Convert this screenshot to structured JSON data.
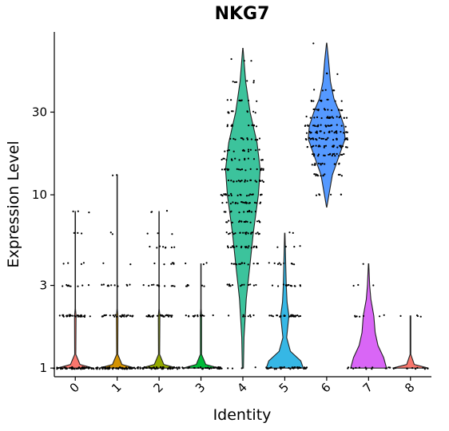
{
  "chart_data": {
    "type": "violin",
    "title": "NKG7",
    "xlabel": "Identity",
    "ylabel": "Expression Level",
    "y_scale": "log",
    "y_ticks": [
      1,
      3,
      10,
      30
    ],
    "ylim": [
      0.95,
      80
    ],
    "categories": [
      "0",
      "1",
      "2",
      "3",
      "4",
      "5",
      "6",
      "7",
      "8"
    ],
    "colors": [
      "#F8766D",
      "#D39200",
      "#93AA00",
      "#00BA38",
      "#3CC39C",
      "#36B7E5",
      "#5599FF",
      "#D966F6",
      "#F8766D"
    ],
    "series": [
      {
        "name": "0",
        "min": 1,
        "max": 8,
        "shape": [
          [
            1,
            0.95
          ],
          [
            1.05,
            0.25
          ],
          [
            1.2,
            0.03
          ],
          [
            2,
            0.04
          ],
          [
            2.2,
            0.01
          ],
          [
            8,
            0.01
          ]
        ],
        "levels": [
          [
            1,
            55
          ],
          [
            2,
            30
          ],
          [
            3,
            9
          ],
          [
            4,
            4
          ],
          [
            6,
            3
          ],
          [
            8,
            3
          ]
        ],
        "fill": false
      },
      {
        "name": "1",
        "min": 1,
        "max": 13,
        "shape": [
          [
            1,
            0.95
          ],
          [
            1.05,
            0.25
          ],
          [
            1.2,
            0.03
          ],
          [
            2,
            0.04
          ],
          [
            2.2,
            0.01
          ],
          [
            13,
            0.01
          ]
        ],
        "levels": [
          [
            1,
            55
          ],
          [
            2,
            30
          ],
          [
            3,
            12
          ],
          [
            4,
            2
          ],
          [
            6,
            2
          ],
          [
            13,
            2
          ]
        ],
        "fill": false
      },
      {
        "name": "2",
        "min": 1,
        "max": 8,
        "shape": [
          [
            1,
            0.95
          ],
          [
            1.05,
            0.25
          ],
          [
            1.2,
            0.03
          ],
          [
            2,
            0.04
          ],
          [
            2.2,
            0.01
          ],
          [
            8,
            0.01
          ]
        ],
        "levels": [
          [
            1,
            50
          ],
          [
            2,
            28
          ],
          [
            3,
            12
          ],
          [
            4,
            6
          ],
          [
            5,
            8
          ],
          [
            6,
            3
          ],
          [
            8,
            3
          ]
        ],
        "fill": false
      },
      {
        "name": "3",
        "min": 1,
        "max": 4,
        "shape": [
          [
            1,
            0.95
          ],
          [
            1.05,
            0.25
          ],
          [
            1.2,
            0.03
          ],
          [
            2,
            0.03
          ],
          [
            2.2,
            0.01
          ],
          [
            4,
            0.01
          ]
        ],
        "levels": [
          [
            1,
            35
          ],
          [
            2,
            15
          ],
          [
            3,
            6
          ],
          [
            4,
            3
          ]
        ],
        "fill": false
      },
      {
        "name": "4",
        "min": 1,
        "max": 70,
        "shape": [
          [
            1,
            0.03
          ],
          [
            1.5,
            0.06
          ],
          [
            2.5,
            0.18
          ],
          [
            4,
            0.38
          ],
          [
            6,
            0.55
          ],
          [
            10,
            0.82
          ],
          [
            14,
            0.92
          ],
          [
            20,
            0.75
          ],
          [
            30,
            0.38
          ],
          [
            45,
            0.15
          ],
          [
            70,
            0.01
          ]
        ],
        "levels": [
          [
            1,
            4
          ],
          [
            2,
            8
          ],
          [
            3,
            14
          ],
          [
            4,
            14
          ],
          [
            5,
            22
          ],
          [
            6,
            20
          ],
          [
            7,
            18
          ],
          [
            8,
            12
          ],
          [
            9,
            20
          ],
          [
            10,
            22
          ],
          [
            12,
            22
          ],
          [
            14,
            20
          ],
          [
            16,
            15
          ],
          [
            18,
            12
          ],
          [
            21,
            12
          ],
          [
            25,
            10
          ],
          [
            30,
            10
          ],
          [
            35,
            8
          ],
          [
            45,
            6
          ],
          [
            60,
            3
          ]
        ],
        "fill": true
      },
      {
        "name": "5",
        "min": 1,
        "max": 6,
        "shape": [
          [
            1,
            0.98
          ],
          [
            1.1,
            0.85
          ],
          [
            1.25,
            0.3
          ],
          [
            1.5,
            0.1
          ],
          [
            2,
            0.22
          ],
          [
            2.4,
            0.12
          ],
          [
            3,
            0.08
          ],
          [
            4,
            0.05
          ],
          [
            6,
            0.01
          ]
        ],
        "levels": [
          [
            1,
            40
          ],
          [
            2,
            28
          ],
          [
            3,
            16
          ],
          [
            4,
            10
          ],
          [
            5,
            4
          ],
          [
            6,
            2
          ]
        ],
        "fill": true
      },
      {
        "name": "6",
        "min": 8.5,
        "max": 75,
        "shape": [
          [
            8.5,
            0.01
          ],
          [
            10,
            0.12
          ],
          [
            13,
            0.3
          ],
          [
            17,
            0.68
          ],
          [
            21,
            0.98
          ],
          [
            25,
            0.92
          ],
          [
            30,
            0.68
          ],
          [
            36,
            0.38
          ],
          [
            45,
            0.2
          ],
          [
            60,
            0.1
          ],
          [
            75,
            0.01
          ]
        ],
        "levels": [
          [
            10,
            6
          ],
          [
            13,
            12
          ],
          [
            15,
            14
          ],
          [
            17,
            20
          ],
          [
            19,
            24
          ],
          [
            21,
            26
          ],
          [
            23,
            24
          ],
          [
            25,
            22
          ],
          [
            28,
            20
          ],
          [
            31,
            14
          ],
          [
            35,
            10
          ],
          [
            40,
            6
          ],
          [
            50,
            3
          ],
          [
            75,
            1
          ]
        ],
        "fill": true
      },
      {
        "name": "7",
        "min": 1,
        "max": 4,
        "shape": [
          [
            1,
            0.95
          ],
          [
            1.15,
            0.8
          ],
          [
            1.35,
            0.5
          ],
          [
            1.6,
            0.35
          ],
          [
            2,
            0.28
          ],
          [
            2.5,
            0.12
          ],
          [
            3,
            0.06
          ],
          [
            4,
            0.01
          ]
        ],
        "levels": [
          [
            1,
            14
          ],
          [
            2,
            8
          ],
          [
            3,
            3
          ],
          [
            4,
            1
          ]
        ],
        "fill": true
      },
      {
        "name": "8",
        "min": 1,
        "max": 2,
        "shape": [
          [
            1,
            0.95
          ],
          [
            1.05,
            0.2
          ],
          [
            1.2,
            0.02
          ],
          [
            2,
            0.02
          ]
        ],
        "levels": [
          [
            1,
            12
          ],
          [
            2,
            4
          ]
        ],
        "fill": false
      }
    ]
  }
}
